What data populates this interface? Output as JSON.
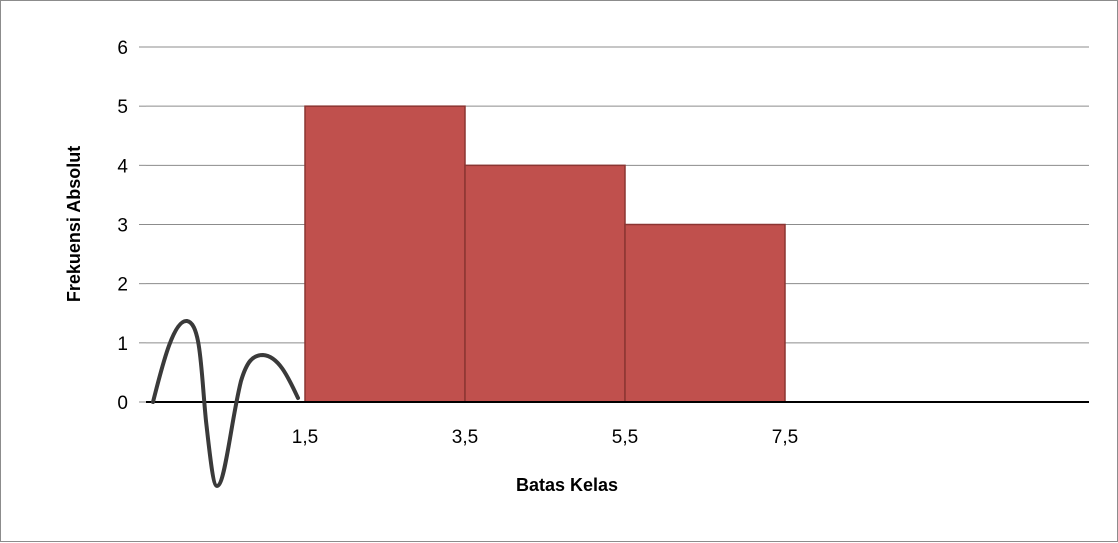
{
  "chart_data": {
    "type": "bar",
    "xlabel": "Batas Kelas",
    "ylabel": "Frekuensi Absolut",
    "ylim": [
      0,
      6
    ],
    "yticks": [
      "0",
      "1",
      "2",
      "3",
      "4",
      "5",
      "6"
    ],
    "x_ticks": [
      "1,5",
      "3,5",
      "5,5",
      "7,5"
    ],
    "bars": [
      {
        "from": "1,5",
        "to": "3,5",
        "value": 5
      },
      {
        "from": "3,5",
        "to": "5,5",
        "value": 4
      },
      {
        "from": "5,5",
        "to": "7,5",
        "value": 3
      }
    ],
    "grid": true,
    "legend": "none",
    "bar_color": "#c0504d",
    "bar_edge_color": "#8b3532",
    "axis_break_symbol": "zigzag-axis-break"
  }
}
